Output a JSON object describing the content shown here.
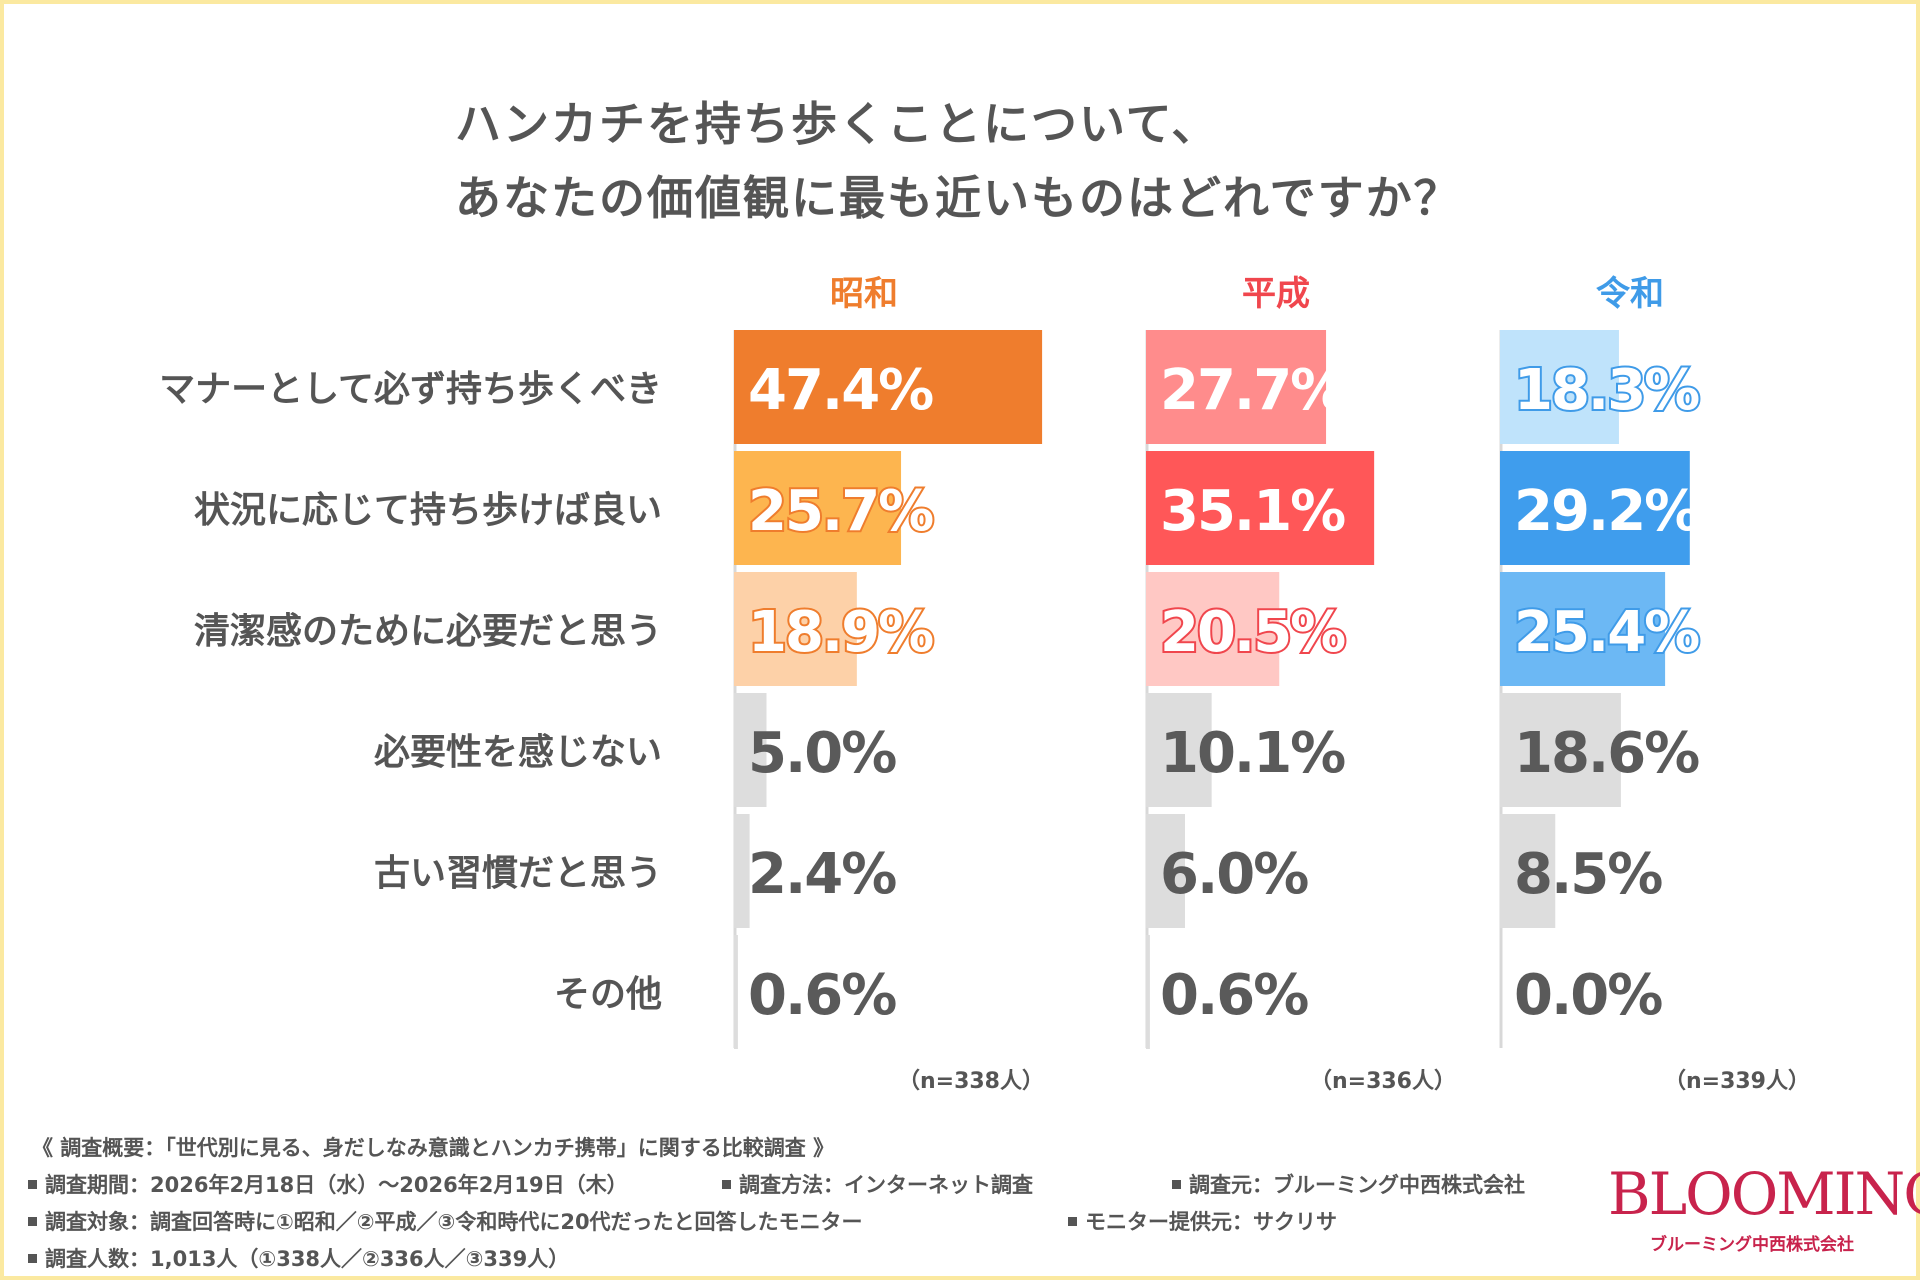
{
  "title": {
    "line1": "ハンカチを持ち歩くことについて、",
    "line2": "あなたの価値観に最も近いものはどれですか？"
  },
  "chart_data": {
    "type": "bar",
    "orientation": "horizontal",
    "title": "ハンカチを持ち歩くことについて、あなたの価値観に最も近いものはどれですか？",
    "unit": "%",
    "categories": [
      "マナーとして必ず持ち歩くべき",
      "状況に応じて持ち歩けば良い",
      "清潔感のために必要だと思う",
      "必要性を感じない",
      "古い習慣だと思う",
      "その他"
    ],
    "series": [
      {
        "name": "昭和",
        "n_label": "（n=338人）",
        "values": [
          47.4,
          25.7,
          18.9,
          5.0,
          2.4,
          0.6
        ],
        "labels": [
          "47.4%",
          "25.7%",
          "18.9%",
          "5.0%",
          "2.4%",
          "0.6%"
        ],
        "header_color": "#ef7d2d",
        "colors": [
          "#ef7d2d",
          "#fdb54f",
          "#fdd1a8",
          "#dddddd",
          "#dddddd",
          "#dddddd"
        ]
      },
      {
        "name": "平成",
        "n_label": "（n=336人）",
        "values": [
          27.7,
          35.1,
          20.5,
          10.1,
          6.0,
          0.6
        ],
        "labels": [
          "27.7%",
          "35.1%",
          "20.5%",
          "10.1%",
          "6.0%",
          "0.6%"
        ],
        "header_color": "#f0464d",
        "colors": [
          "#ff8c8c",
          "#ff5758",
          "#ffc8c4",
          "#dddddd",
          "#dddddd",
          "#dddddd"
        ]
      },
      {
        "name": "令和",
        "n_label": "（n=339人）",
        "values": [
          18.3,
          29.2,
          25.4,
          18.6,
          8.5,
          0.0
        ],
        "labels": [
          "18.3%",
          "29.2%",
          "25.4%",
          "18.6%",
          "8.5%",
          "0.0%"
        ],
        "header_color": "#3f9be8",
        "colors": [
          "#bfe3fb",
          "#3f9ded",
          "#6cb8f4",
          "#dddddd",
          "#dddddd",
          "#dddddd"
        ]
      }
    ],
    "label_colors": {
      "on_dark": "#ffffff",
      "outlined": "#ffffff",
      "plain": "#5a5a5a"
    },
    "label_styles": [
      [
        "white",
        "white",
        "outline"
      ],
      [
        "outline",
        "white",
        "white"
      ],
      [
        "outline",
        "outline",
        "outline"
      ],
      [
        "plain",
        "plain",
        "plain"
      ],
      [
        "plain",
        "plain",
        "plain"
      ],
      [
        "plain",
        "plain",
        "plain"
      ]
    ],
    "grid": false,
    "legend": "column headers"
  },
  "footer": {
    "survey_title": "《 調査概要：「世代別に見る、身だしなみ意識とハンカチ携帯」に関する比較調査 》",
    "period": "調査期間：2026年2月18日（水）～2026年2月19日（木）",
    "method": "調査方法：インターネット調査",
    "source": "調査元：ブルーミング中西株式会社",
    "target": "調査対象：調査回答時に①昭和／②平成／③令和時代に20代だったと回答したモニター",
    "provider": "モニター提供元：サクリサ",
    "count": "調査人数：1,013人（①338人／②336人／③339人）"
  },
  "logo": {
    "word": "BLOOMING",
    "sub": "ブルーミング中西株式会社",
    "color": "#c8234c"
  },
  "colors": {
    "frame": "#fbe9a0",
    "text": "#555555"
  }
}
